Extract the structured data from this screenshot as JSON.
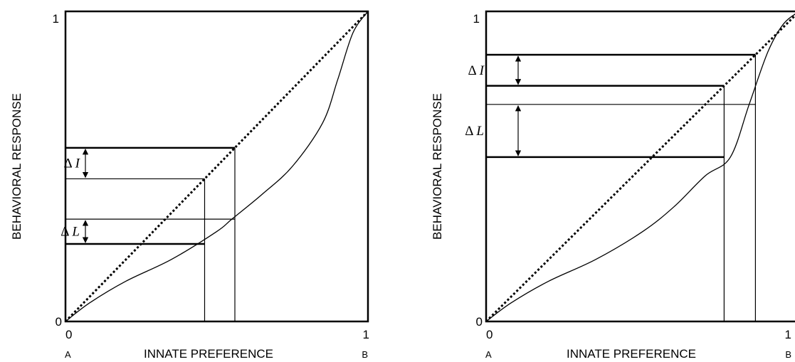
{
  "panels": [
    {
      "id": "left",
      "x_axis": {
        "label": "INNATE PREFERENCE",
        "tick_min": "0",
        "tick_max": "1",
        "end_left": "A",
        "end_right": "B"
      },
      "y_axis": {
        "label": "BEHAVIORAL RESPONSE",
        "tick_min": "0",
        "tick_max": "1"
      },
      "reference_line": {
        "from": [
          0,
          0
        ],
        "to": [
          1,
          1
        ],
        "style": "dotted"
      },
      "curve": [
        [
          0,
          0
        ],
        [
          0.08,
          0.06
        ],
        [
          0.2,
          0.13
        ],
        [
          0.35,
          0.2
        ],
        [
          0.5,
          0.29
        ],
        [
          0.55,
          0.33
        ],
        [
          0.65,
          0.41
        ],
        [
          0.75,
          0.5
        ],
        [
          0.85,
          0.64
        ],
        [
          0.9,
          0.78
        ],
        [
          0.95,
          0.93
        ],
        [
          1,
          1
        ]
      ],
      "markers": {
        "x_lower": 0.46,
        "x_upper": 0.56,
        "y_curve_lower": 0.25,
        "y_curve_upper": 0.33,
        "y_diag_lower": 0.46,
        "y_diag_upper": 0.56
      },
      "annotations": [
        {
          "delta": "Δ",
          "symbol": "I",
          "spans": "diagonal"
        },
        {
          "delta": "Δ",
          "symbol": "L",
          "spans": "curve"
        }
      ]
    },
    {
      "id": "right",
      "x_axis": {
        "label": "INNATE PREFERENCE",
        "tick_min": "0",
        "tick_max": "1",
        "end_left": "A",
        "end_right": "B"
      },
      "y_axis": {
        "label": "BEHAVIORAL RESPONSE",
        "tick_min": "0",
        "tick_max": "1"
      },
      "reference_line": {
        "from": [
          0,
          0
        ],
        "to": [
          1,
          1
        ],
        "style": "dotted"
      },
      "curve": [
        [
          0,
          0
        ],
        [
          0.08,
          0.06
        ],
        [
          0.2,
          0.13
        ],
        [
          0.35,
          0.2
        ],
        [
          0.5,
          0.29
        ],
        [
          0.6,
          0.37
        ],
        [
          0.7,
          0.47
        ],
        [
          0.78,
          0.53
        ],
        [
          0.84,
          0.7
        ],
        [
          0.9,
          0.87
        ],
        [
          0.95,
          0.96
        ],
        [
          1,
          1
        ]
      ],
      "markers": {
        "x_lower": 0.76,
        "x_upper": 0.86,
        "y_curve_lower": 0.53,
        "y_curve_upper": 0.7,
        "y_diag_lower": 0.76,
        "y_diag_upper": 0.86
      },
      "annotations": [
        {
          "delta": "Δ",
          "symbol": "I",
          "spans": "diagonal"
        },
        {
          "delta": "Δ",
          "symbol": "L",
          "spans": "curve"
        }
      ]
    }
  ]
}
